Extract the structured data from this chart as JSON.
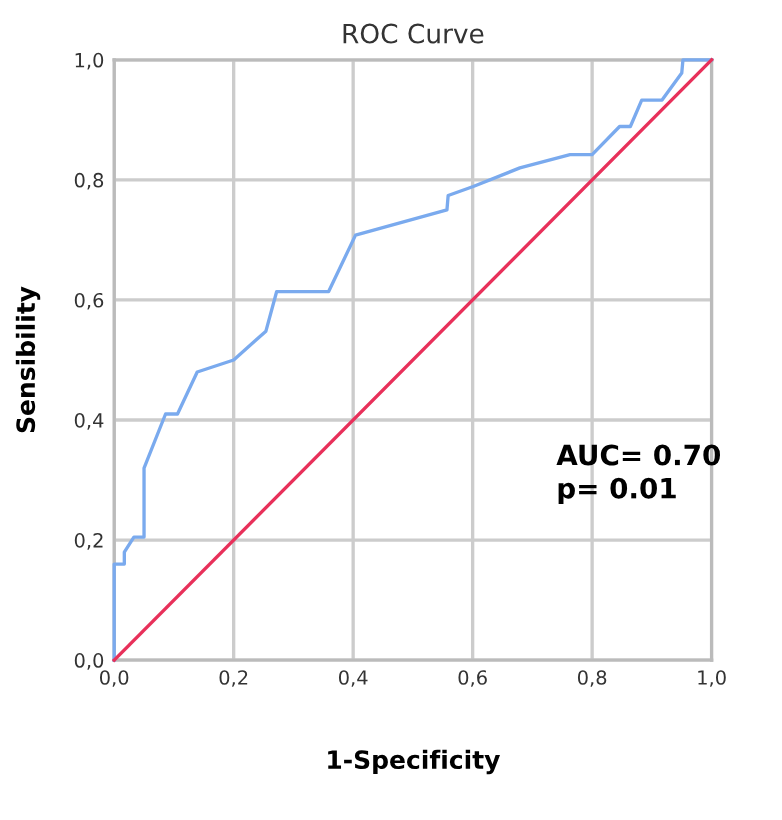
{
  "chart_data": {
    "type": "line",
    "title": "ROC Curve",
    "xlabel": "1-Specificity",
    "ylabel": "Sensibility",
    "series": [
      {
        "color": "#7aaaee",
        "x": [
          0,
          0,
          0.017,
          0.017,
          0.033,
          0.05,
          0.05,
          0.086,
          0.106,
          0.139,
          0.2,
          0.254,
          0.272,
          0.359,
          0.404,
          0.557,
          0.559,
          0.601,
          0.679,
          0.763,
          0.8,
          0.846,
          0.864,
          0.883,
          0.917,
          0.95,
          0.952,
          1
        ],
        "values": [
          0,
          0.16,
          0.16,
          0.18,
          0.205,
          0.205,
          0.32,
          0.41,
          0.41,
          0.48,
          0.5,
          0.548,
          0.614,
          0.614,
          0.708,
          0.75,
          0.774,
          0.789,
          0.82,
          0.842,
          0.842,
          0.889,
          0.889,
          0.933,
          0.933,
          0.978,
          1,
          1
        ]
      },
      {
        "color": "#e8305a",
        "x": [
          0,
          1
        ],
        "values": [
          0,
          1
        ]
      }
    ],
    "xlim": [
      0,
      1
    ],
    "ylim": [
      0,
      1
    ],
    "xticks": [
      {
        "value": 0,
        "label": "0,0"
      },
      {
        "value": 0.2,
        "label": "0,2"
      },
      {
        "value": 0.4,
        "label": "0,4"
      },
      {
        "value": 0.6,
        "label": "0,6"
      },
      {
        "value": 0.8,
        "label": "0,8"
      },
      {
        "value": 1,
        "label": "1,0"
      }
    ],
    "yticks": [
      {
        "value": 0,
        "label": "0,0"
      },
      {
        "value": 0.2,
        "label": "0,2"
      },
      {
        "value": 0.4,
        "label": "0,4"
      },
      {
        "value": 0.6,
        "label": "0,6"
      },
      {
        "value": 0.8,
        "label": "0,8"
      },
      {
        "value": 1,
        "label": "1,0"
      }
    ],
    "annotations": [
      "AUC= 0.70\np= 0.01"
    ],
    "grid": true,
    "marker": "none",
    "line_style": "solid",
    "legend": false
  }
}
